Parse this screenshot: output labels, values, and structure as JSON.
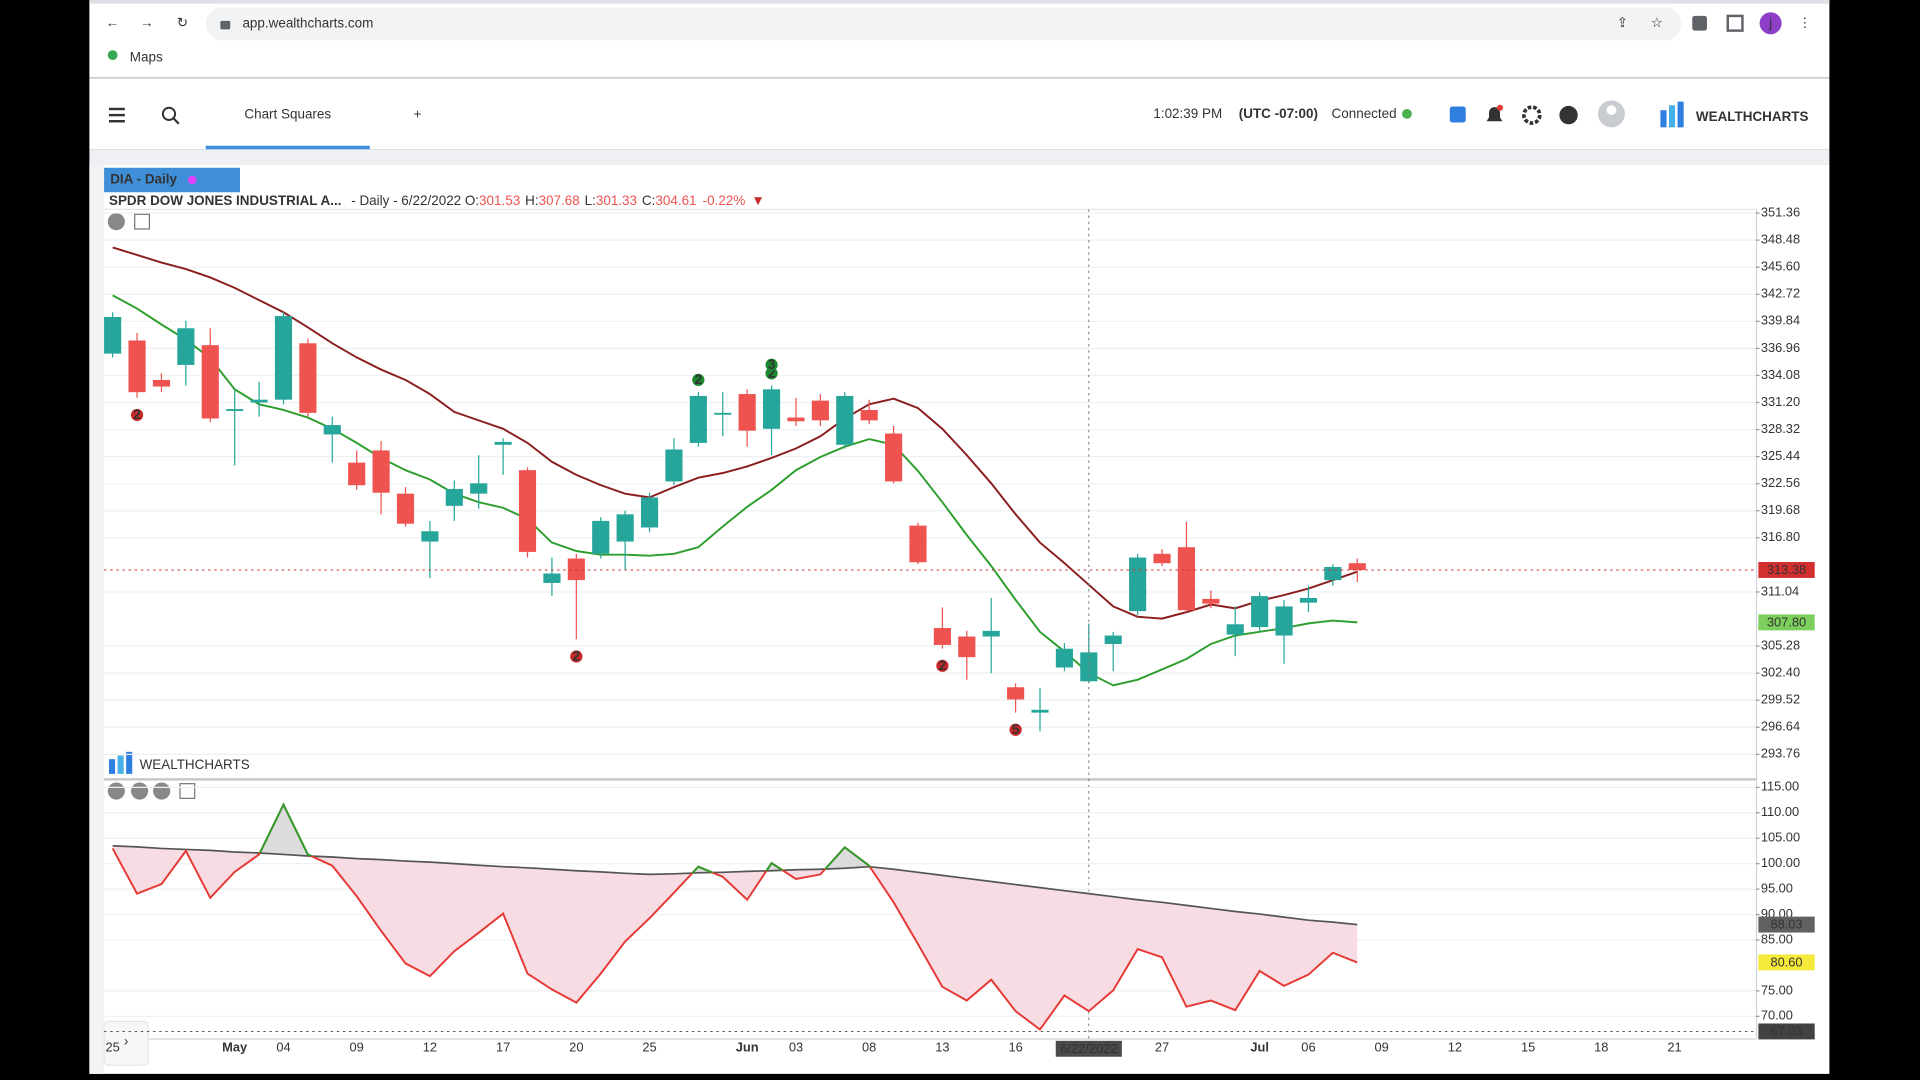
{
  "browser": {
    "url": "app.wealthcharts.com",
    "bookmark": "Maps",
    "profile": "j"
  },
  "header": {
    "tab": "Chart Squares",
    "add": "+",
    "time": "1:02:39 PM",
    "timezone": "(UTC -07:00)",
    "status": "Connected",
    "logo": "WEALTHCHARTS"
  },
  "watermark": "WEALTHCHARTS",
  "chart_data": [
    {
      "type": "candlestick",
      "tab": "DIA - Daily",
      "title": "SPDR DOW JONES INDUSTRIAL A...",
      "subtitle": "- Daily - 6/22/2022",
      "info": [
        {
          "label": "O:",
          "value": 301.53
        },
        {
          "label": "H:",
          "value": 307.68
        },
        {
          "label": "L:",
          "value": 301.33
        },
        {
          "label": "C:",
          "value": 304.61
        }
      ],
      "change": "-0.22%",
      "categories": [
        "25",
        null,
        null,
        null,
        null,
        "May",
        null,
        "04",
        null,
        null,
        "09",
        null,
        null,
        "12",
        null,
        null,
        "17",
        null,
        null,
        "20",
        null,
        null,
        "25",
        null,
        null,
        null,
        "Jun",
        null,
        "03",
        null,
        null,
        "08",
        null,
        null,
        "13",
        null,
        null,
        "16",
        null,
        null,
        null,
        null,
        null,
        "27",
        null,
        null,
        null,
        "Jul",
        null,
        "06",
        null,
        null
      ],
      "future_categories": [
        "09",
        "12",
        "15",
        "18",
        "21"
      ],
      "crosshair": {
        "index": 40,
        "label": "6/22/2022"
      },
      "open": [
        336.4,
        337.8,
        333.6,
        335.2,
        337.3,
        330.3,
        331.2,
        331.5,
        337.5,
        327.8,
        324.8,
        326.1,
        321.5,
        316.4,
        320.2,
        321.5,
        326.7,
        324.0,
        312.0,
        314.6,
        315.1,
        316.4,
        317.9,
        322.8,
        326.9,
        329.9,
        332.1,
        328.4,
        329.6,
        331.4,
        326.7,
        330.4,
        327.9,
        318.1,
        307.2,
        306.3,
        306.3,
        300.9,
        298.2,
        303.0,
        301.53,
        305.5,
        309.0,
        315.1,
        315.8,
        310.3,
        306.5,
        307.3,
        306.4,
        309.9,
        312.3,
        314.1
      ],
      "high": [
        340.8,
        338.6,
        334.3,
        339.9,
        339.1,
        332.6,
        333.4,
        340.8,
        338.0,
        329.7,
        326.1,
        327.1,
        322.2,
        318.6,
        322.9,
        325.6,
        327.4,
        324.3,
        314.7,
        315.1,
        319.0,
        319.7,
        321.6,
        327.4,
        332.3,
        332.3,
        332.6,
        333.0,
        331.7,
        332.1,
        332.3,
        331.5,
        328.7,
        318.4,
        309.4,
        306.9,
        310.4,
        301.3,
        300.8,
        305.6,
        307.68,
        306.8,
        315.1,
        315.6,
        318.5,
        311.2,
        309.5,
        311.0,
        310.2,
        311.7,
        314.0,
        314.6
      ],
      "low": [
        336.0,
        331.7,
        332.3,
        333.0,
        329.1,
        324.5,
        329.7,
        331.0,
        329.7,
        324.8,
        321.9,
        319.3,
        318.0,
        312.5,
        318.6,
        319.9,
        323.5,
        314.7,
        310.6,
        306.0,
        314.6,
        313.4,
        317.4,
        322.4,
        326.5,
        327.6,
        326.5,
        325.6,
        328.7,
        328.7,
        326.3,
        328.9,
        322.6,
        314.0,
        305.0,
        301.7,
        302.4,
        298.2,
        296.2,
        302.6,
        301.33,
        302.6,
        308.6,
        313.8,
        308.9,
        309.3,
        304.2,
        306.9,
        303.4,
        308.9,
        311.7,
        312.1
      ],
      "close": [
        340.3,
        332.3,
        332.9,
        339.1,
        329.5,
        330.5,
        331.5,
        340.4,
        330.1,
        328.8,
        322.4,
        321.6,
        318.3,
        317.5,
        322.0,
        322.6,
        327.0,
        315.3,
        313.0,
        312.3,
        318.6,
        319.3,
        321.1,
        326.2,
        331.9,
        330.1,
        328.2,
        332.6,
        329.2,
        329.3,
        331.9,
        329.3,
        322.8,
        314.2,
        305.4,
        304.1,
        306.9,
        299.6,
        298.5,
        305.0,
        304.61,
        306.4,
        314.7,
        314.1,
        309.1,
        309.8,
        307.6,
        310.6,
        309.5,
        310.4,
        313.7,
        313.38
      ],
      "up_color": "#26a69a",
      "down_color": "#ef5350",
      "series": [
        {
          "color": "#8b1e1e",
          "values": [
            347.7,
            346.9,
            346.1,
            345.4,
            344.5,
            343.4,
            342.1,
            340.8,
            339.2,
            337.5,
            336.0,
            334.7,
            333.6,
            332.1,
            330.2,
            329.3,
            328.4,
            326.9,
            324.9,
            323.5,
            322.4,
            321.5,
            321.1,
            322.2,
            323.2,
            323.7,
            324.4,
            325.3,
            326.3,
            327.6,
            329.5,
            331.0,
            331.6,
            330.6,
            328.4,
            325.6,
            322.6,
            319.3,
            316.3,
            314.1,
            311.8,
            309.5,
            308.4,
            308.2,
            308.9,
            309.7,
            309.3,
            310.1,
            310.7,
            311.4,
            312.3,
            313.2
          ]
        },
        {
          "color": "#2e9e2e",
          "values": [
            342.6,
            341.2,
            339.5,
            337.9,
            335.9,
            332.6,
            331.0,
            330.4,
            329.6,
            328.4,
            326.9,
            325.3,
            324.0,
            323.0,
            321.5,
            320.6,
            320.0,
            318.8,
            316.3,
            315.4,
            315.0,
            315.0,
            314.9,
            315.1,
            315.8,
            318.0,
            320.1,
            321.9,
            324.0,
            325.4,
            326.5,
            327.3,
            326.7,
            323.9,
            320.6,
            317.1,
            313.8,
            310.2,
            306.8,
            304.7,
            302.4,
            301.1,
            301.7,
            302.8,
            303.9,
            305.5,
            306.4,
            306.8,
            307.2,
            307.7,
            308.0,
            307.8
          ]
        }
      ],
      "ylim": [
        291.42,
        351.75
      ],
      "yticks": [
        351.36,
        348.48,
        {
          "value": 345.6,
          "label": "345.60"
        },
        342.72,
        339.84,
        336.96,
        334.08,
        {
          "value": 331.2,
          "label": "331.20"
        },
        328.32,
        325.44,
        322.56,
        319.68,
        {
          "value": 316.8,
          "label": "316.80"
        },
        311.04,
        305.28,
        {
          "value": 302.4,
          "label": "302.40"
        },
        299.52,
        296.64,
        293.76
      ],
      "grid": true,
      "tags": [
        {
          "value": 313.38,
          "color": "#d32f2f",
          "text_color": "#ffffff",
          "line": true
        },
        {
          "value": 307.8,
          "label": "307.80",
          "color": "#7ccf5c",
          "text_color": "#ffffff",
          "line": false
        }
      ],
      "annotations": [
        {
          "index": 1,
          "text": "2",
          "color": "#c62828",
          "side": "below"
        },
        {
          "index": 19,
          "text": "2",
          "color": "#c62828",
          "side": "below"
        },
        {
          "index": 24,
          "text": "2",
          "color": "#1b8a2e",
          "side": "above"
        },
        {
          "index": 27,
          "text": "2",
          "color": "#1b8a2e",
          "side": "above"
        },
        {
          "index": 27,
          "text": "3",
          "color": "#1b8a2e",
          "side": "above"
        },
        {
          "index": 34,
          "text": "2",
          "color": "#c62828",
          "side": "below"
        },
        {
          "index": 37,
          "text": "5",
          "color": "#c62828",
          "side": "below"
        }
      ]
    },
    {
      "type": "line",
      "values": [
        103.0,
        94.1,
        96.0,
        102.5,
        93.3,
        98.4,
        101.8,
        111.6,
        101.8,
        99.6,
        93.6,
        86.8,
        80.4,
        77.9,
        82.8,
        86.4,
        90.2,
        78.4,
        75.3,
        72.7,
        78.4,
        84.7,
        89.3,
        94.3,
        99.4,
        97.4,
        92.9,
        100.1,
        97.0,
        97.9,
        103.2,
        99.6,
        92.4,
        84.2,
        75.8,
        73.1,
        77.2,
        71.0,
        67.4,
        74.1,
        71.0,
        75.1,
        83.2,
        81.6,
        71.9,
        73.1,
        71.2,
        78.9,
        76.0,
        78.2,
        82.5,
        80.6
      ],
      "baseline": [
        103.5,
        103.3,
        103.0,
        102.8,
        102.6,
        102.3,
        102.1,
        101.8,
        101.5,
        101.3,
        101.0,
        100.8,
        100.5,
        100.3,
        100.0,
        99.7,
        99.4,
        99.2,
        98.9,
        98.6,
        98.4,
        98.1,
        97.9,
        98.0,
        98.2,
        98.3,
        98.5,
        98.6,
        98.8,
        98.9,
        99.1,
        99.4,
        98.9,
        98.3,
        97.7,
        97.1,
        96.5,
        95.9,
        95.3,
        94.7,
        94.1,
        93.5,
        92.9,
        92.4,
        91.8,
        91.2,
        90.6,
        90.1,
        89.5,
        88.9,
        88.5,
        88.03
      ],
      "below_color": "#e53935",
      "above_color": "#2e9e2e",
      "baseline_color": "#555555",
      "fill_below": "#f8dce3",
      "fill_above": "#dcdcdc",
      "ylim": [
        65.67,
        116.2
      ],
      "yticks": [
        {
          "value": 115,
          "label": "115.00"
        },
        {
          "value": 110,
          "label": "110.00"
        },
        {
          "value": 105,
          "label": "105.00"
        },
        {
          "value": 100,
          "label": "100.00"
        },
        {
          "value": 95,
          "label": "95.00"
        },
        {
          "value": 90,
          "label": "90.00"
        },
        {
          "value": 85,
          "label": "85.00"
        },
        {
          "value": 75,
          "label": "75.00"
        },
        {
          "value": 70,
          "label": "70.00"
        }
      ],
      "grid": true,
      "tags": [
        {
          "value": 88.03,
          "color": "#616161",
          "text_color": "#ffffff",
          "line": false
        },
        {
          "value": 80.6,
          "label": "80.60",
          "color": "#f5ea3b",
          "text_color": "#333333",
          "line": false
        },
        {
          "value": 67.03,
          "color": "#424242",
          "text_color": "#ffffff",
          "line": true
        }
      ]
    }
  ]
}
